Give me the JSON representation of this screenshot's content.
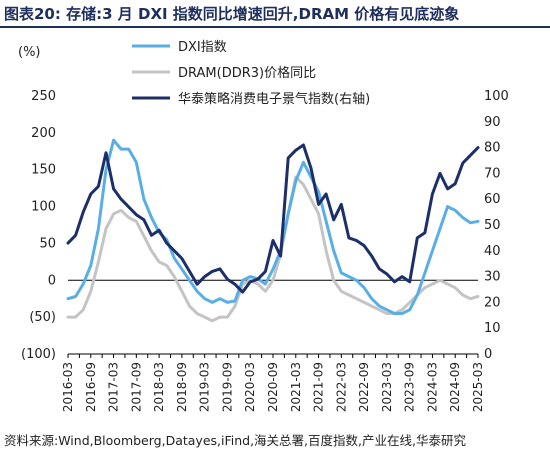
{
  "header": {
    "label": "图表20:",
    "title": "存储:3 月 DXI 指数同比增速回升,DRAM 价格有见底迹象"
  },
  "source": "资料来源:Wind,Bloomberg,Datayes,iFind,海关总署,百度指数,产业在线,华泰研究",
  "chart_data": {
    "type": "line",
    "ylabel_left": "(%)",
    "ylim_left": [
      -100,
      250
    ],
    "yticks_left": [
      "250",
      "200",
      "150",
      "100",
      "50",
      "0",
      "(50)",
      "(100)"
    ],
    "ylim_right": [
      0,
      100
    ],
    "yticks_right": [
      "100",
      "90",
      "80",
      "70",
      "60",
      "50",
      "40",
      "30",
      "20",
      "10",
      "0"
    ],
    "x_ticks": [
      "2016-03",
      "2016-09",
      "2017-03",
      "2017-09",
      "2018-03",
      "2018-09",
      "2019-03",
      "2019-09",
      "2020-03",
      "2020-09",
      "2021-03",
      "2021-09",
      "2022-03",
      "2022-09",
      "2023-03",
      "2023-09",
      "2024-03",
      "2024-09",
      "2025-03"
    ],
    "legend_position": "top-center",
    "series": [
      {
        "name": "DXI指数",
        "axis": "left",
        "color": "#5aaee6",
        "points": [
          [
            "2016-03",
            -25
          ],
          [
            "2016-05",
            -22
          ],
          [
            "2016-07",
            -5
          ],
          [
            "2016-09",
            20
          ],
          [
            "2016-11",
            70
          ],
          [
            "2017-01",
            150
          ],
          [
            "2017-03",
            190
          ],
          [
            "2017-05",
            178
          ],
          [
            "2017-07",
            178
          ],
          [
            "2017-09",
            160
          ],
          [
            "2017-11",
            110
          ],
          [
            "2018-01",
            85
          ],
          [
            "2018-03",
            65
          ],
          [
            "2018-05",
            55
          ],
          [
            "2018-07",
            30
          ],
          [
            "2018-09",
            15
          ],
          [
            "2018-11",
            0
          ],
          [
            "2019-01",
            -15
          ],
          [
            "2019-03",
            -25
          ],
          [
            "2019-05",
            -30
          ],
          [
            "2019-07",
            -25
          ],
          [
            "2019-09",
            -30
          ],
          [
            "2019-11",
            -28
          ],
          [
            "2020-01",
            0
          ],
          [
            "2020-03",
            5
          ],
          [
            "2020-05",
            2
          ],
          [
            "2020-07",
            -5
          ],
          [
            "2020-09",
            15
          ],
          [
            "2020-11",
            40
          ],
          [
            "2021-01",
            90
          ],
          [
            "2021-03",
            135
          ],
          [
            "2021-05",
            160
          ],
          [
            "2021-07",
            140
          ],
          [
            "2021-09",
            120
          ],
          [
            "2021-11",
            80
          ],
          [
            "2022-01",
            40
          ],
          [
            "2022-03",
            10
          ],
          [
            "2022-05",
            5
          ],
          [
            "2022-07",
            0
          ],
          [
            "2022-09",
            -10
          ],
          [
            "2022-11",
            -25
          ],
          [
            "2023-01",
            -35
          ],
          [
            "2023-03",
            -40
          ],
          [
            "2023-05",
            -45
          ],
          [
            "2023-07",
            -45
          ],
          [
            "2023-09",
            -40
          ],
          [
            "2023-11",
            -20
          ],
          [
            "2024-01",
            10
          ],
          [
            "2024-03",
            40
          ],
          [
            "2024-05",
            70
          ],
          [
            "2024-07",
            100
          ],
          [
            "2024-09",
            95
          ],
          [
            "2024-11",
            85
          ],
          [
            "2025-01",
            78
          ],
          [
            "2025-03",
            80
          ]
        ]
      },
      {
        "name": "DRAM(DDR3)价格同比",
        "axis": "left",
        "color": "#c4c4c4",
        "points": [
          [
            "2016-03",
            -50
          ],
          [
            "2016-05",
            -50
          ],
          [
            "2016-07",
            -40
          ],
          [
            "2016-09",
            -15
          ],
          [
            "2016-11",
            25
          ],
          [
            "2017-01",
            70
          ],
          [
            "2017-03",
            90
          ],
          [
            "2017-05",
            95
          ],
          [
            "2017-07",
            85
          ],
          [
            "2017-09",
            80
          ],
          [
            "2017-11",
            60
          ],
          [
            "2018-01",
            40
          ],
          [
            "2018-03",
            25
          ],
          [
            "2018-05",
            20
          ],
          [
            "2018-07",
            5
          ],
          [
            "2018-09",
            -15
          ],
          [
            "2018-11",
            -35
          ],
          [
            "2019-01",
            -45
          ],
          [
            "2019-03",
            -50
          ],
          [
            "2019-05",
            -55
          ],
          [
            "2019-07",
            -50
          ],
          [
            "2019-09",
            -50
          ],
          [
            "2019-11",
            -35
          ],
          [
            "2020-01",
            -5
          ],
          [
            "2020-03",
            0
          ],
          [
            "2020-05",
            -5
          ],
          [
            "2020-07",
            -15
          ],
          [
            "2020-09",
            0
          ],
          [
            "2020-11",
            35
          ],
          [
            "2021-01",
            90
          ],
          [
            "2021-03",
            140
          ],
          [
            "2021-05",
            130
          ],
          [
            "2021-07",
            110
          ],
          [
            "2021-09",
            90
          ],
          [
            "2021-11",
            40
          ],
          [
            "2022-01",
            0
          ],
          [
            "2022-03",
            -15
          ],
          [
            "2022-05",
            -20
          ],
          [
            "2022-07",
            -25
          ],
          [
            "2022-09",
            -30
          ],
          [
            "2022-11",
            -35
          ],
          [
            "2023-01",
            -40
          ],
          [
            "2023-03",
            -45
          ],
          [
            "2023-05",
            -45
          ],
          [
            "2023-07",
            -40
          ],
          [
            "2023-09",
            -30
          ],
          [
            "2023-11",
            -20
          ],
          [
            "2024-01",
            -10
          ],
          [
            "2024-03",
            -5
          ],
          [
            "2024-05",
            0
          ],
          [
            "2024-07",
            -5
          ],
          [
            "2024-09",
            -10
          ],
          [
            "2024-11",
            -20
          ],
          [
            "2025-01",
            -25
          ],
          [
            "2025-03",
            -22
          ]
        ]
      },
      {
        "name": "华泰策略消费电子景气指数(右轴)",
        "axis": "right",
        "color": "#1c2f6a",
        "points": [
          [
            "2016-03",
            43
          ],
          [
            "2016-05",
            46
          ],
          [
            "2016-07",
            55
          ],
          [
            "2016-09",
            62
          ],
          [
            "2016-11",
            65
          ],
          [
            "2017-01",
            78
          ],
          [
            "2017-03",
            64
          ],
          [
            "2017-05",
            60
          ],
          [
            "2017-07",
            57
          ],
          [
            "2017-09",
            54
          ],
          [
            "2017-11",
            52
          ],
          [
            "2018-01",
            46
          ],
          [
            "2018-03",
            48
          ],
          [
            "2018-05",
            43
          ],
          [
            "2018-07",
            40
          ],
          [
            "2018-09",
            37
          ],
          [
            "2018-11",
            32
          ],
          [
            "2019-01",
            27
          ],
          [
            "2019-03",
            30
          ],
          [
            "2019-05",
            32
          ],
          [
            "2019-07",
            33
          ],
          [
            "2019-09",
            29
          ],
          [
            "2019-11",
            27
          ],
          [
            "2020-01",
            24
          ],
          [
            "2020-03",
            28
          ],
          [
            "2020-05",
            29
          ],
          [
            "2020-07",
            32
          ],
          [
            "2020-09",
            44
          ],
          [
            "2020-11",
            38
          ],
          [
            "2021-01",
            76
          ],
          [
            "2021-03",
            79
          ],
          [
            "2021-05",
            81
          ],
          [
            "2021-07",
            72
          ],
          [
            "2021-09",
            58
          ],
          [
            "2021-11",
            62
          ],
          [
            "2022-01",
            52
          ],
          [
            "2022-03",
            58
          ],
          [
            "2022-05",
            45
          ],
          [
            "2022-07",
            44
          ],
          [
            "2022-09",
            42
          ],
          [
            "2022-11",
            38
          ],
          [
            "2023-01",
            33
          ],
          [
            "2023-03",
            31
          ],
          [
            "2023-05",
            28
          ],
          [
            "2023-07",
            30
          ],
          [
            "2023-09",
            28
          ],
          [
            "2023-11",
            45
          ],
          [
            "2024-01",
            47
          ],
          [
            "2024-03",
            62
          ],
          [
            "2024-05",
            70
          ],
          [
            "2024-07",
            64
          ],
          [
            "2024-09",
            66
          ],
          [
            "2024-11",
            74
          ],
          [
            "2025-01",
            77
          ],
          [
            "2025-03",
            80
          ]
        ]
      }
    ]
  }
}
